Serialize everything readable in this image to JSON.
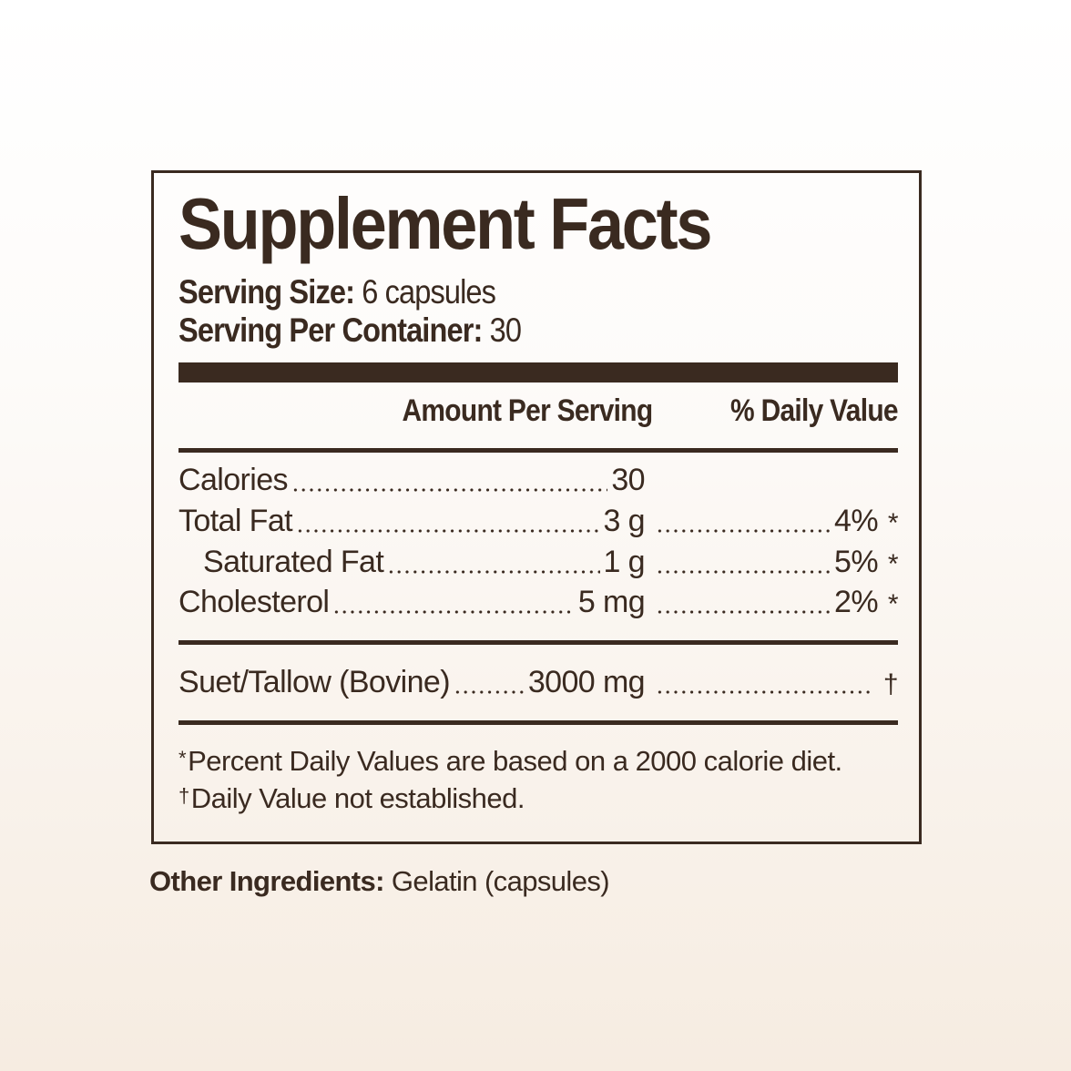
{
  "title": "Supplement Facts",
  "serving_size": {
    "label": "Serving Size:",
    "value": "6 capsules"
  },
  "servings_per_container": {
    "label": "Serving Per Container:",
    "value": "30"
  },
  "headers": {
    "amount": "Amount Per Serving",
    "dv": "% Daily Value"
  },
  "rows": [
    {
      "name": "Calories",
      "amount": "30",
      "dv": "",
      "mark": ""
    },
    {
      "name": "Total Fat",
      "amount": "3 g",
      "dv": "4%",
      "mark": "*"
    },
    {
      "name": "Saturated Fat",
      "amount": "1 g",
      "dv": "5%",
      "mark": "*"
    },
    {
      "name": "Cholesterol",
      "amount": "5 mg",
      "dv": "2%",
      "mark": "*"
    }
  ],
  "ingredient": {
    "name": "Suet/Tallow (Bovine)",
    "amount": "3000 mg",
    "mark": "†"
  },
  "footnotes": [
    {
      "mark": "*",
      "text": "Percent Daily Values are based on a 2000 calorie diet."
    },
    {
      "mark": "†",
      "text": "Daily Value not established."
    }
  ],
  "other_ingredients": {
    "label": "Other Ingredients:",
    "value": "Gelatin (capsules)"
  },
  "colors": {
    "ink": "#3a2a20",
    "background_bottom": "#f6ece1"
  }
}
